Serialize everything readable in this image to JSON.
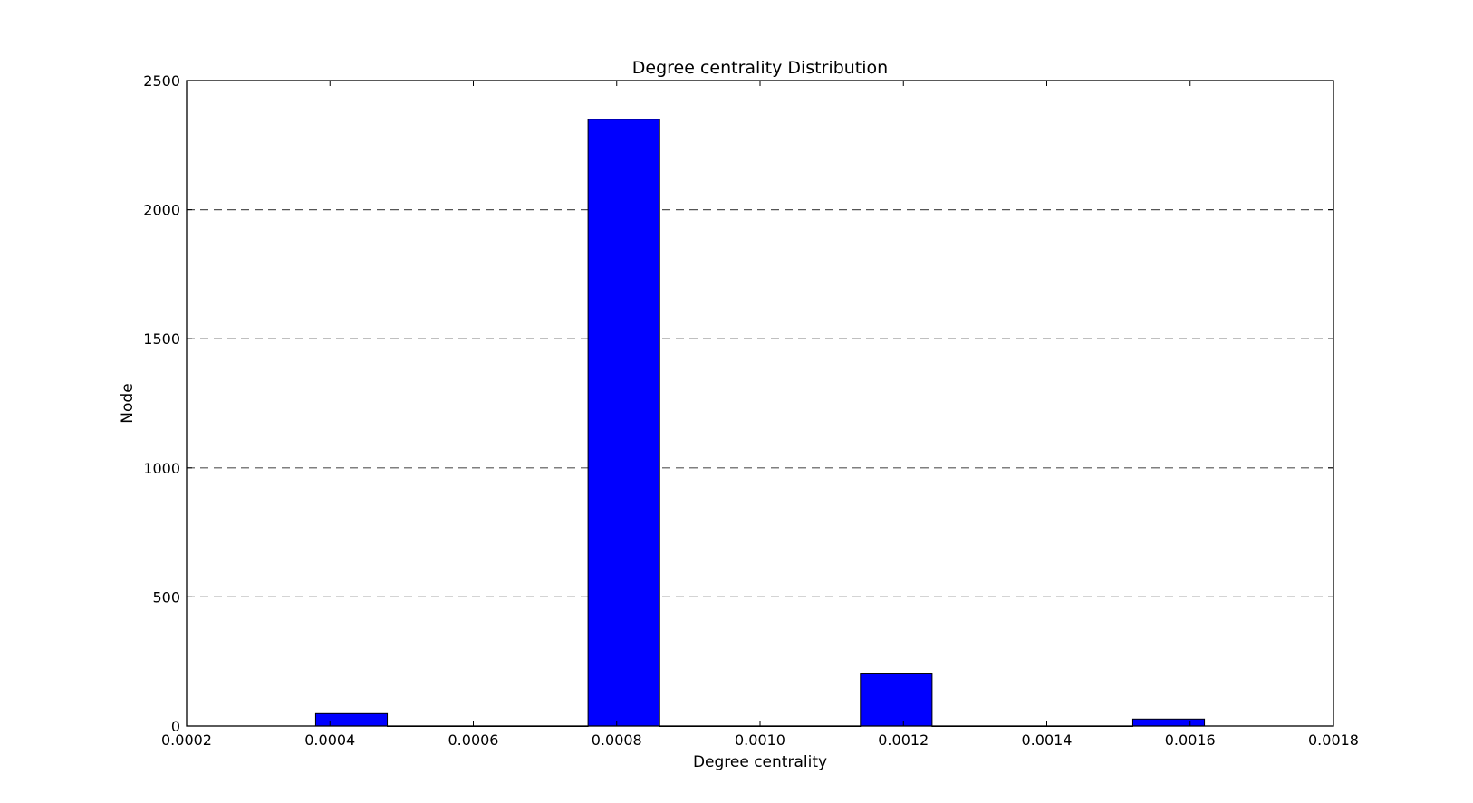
{
  "chart_data": {
    "type": "bar",
    "title": "Degree centrality Distribution",
    "xlabel": "Degree centrality",
    "ylabel": "Node",
    "xlim": [
      0.0002,
      0.0018
    ],
    "ylim": [
      0,
      2500
    ],
    "xticks": [
      "0.0002",
      "0.0004",
      "0.0006",
      "0.0008",
      "0.0010",
      "0.0012",
      "0.0014",
      "0.0016",
      "0.0018"
    ],
    "yticks": [
      "0",
      "500",
      "1000",
      "1500",
      "2000",
      "2500"
    ],
    "grid": "horizontal-dashed",
    "bar_color": "#0000ff",
    "bins": [
      {
        "x0": 0.00038,
        "x1": 0.00048,
        "value": 48
      },
      {
        "x0": 0.00048,
        "x1": 0.00057,
        "value": 0
      },
      {
        "x0": 0.00057,
        "x1": 0.00067,
        "value": 0
      },
      {
        "x0": 0.00067,
        "x1": 0.00076,
        "value": 0
      },
      {
        "x0": 0.00076,
        "x1": 0.00086,
        "value": 2350
      },
      {
        "x0": 0.00086,
        "x1": 0.00095,
        "value": 0
      },
      {
        "x0": 0.00095,
        "x1": 0.00105,
        "value": 0
      },
      {
        "x0": 0.00105,
        "x1": 0.00114,
        "value": 0
      },
      {
        "x0": 0.00114,
        "x1": 0.00124,
        "value": 205
      },
      {
        "x0": 0.00124,
        "x1": 0.00133,
        "value": 0
      },
      {
        "x0": 0.00133,
        "x1": 0.00143,
        "value": 0
      },
      {
        "x0": 0.00143,
        "x1": 0.00152,
        "value": 0
      },
      {
        "x0": 0.00152,
        "x1": 0.00162,
        "value": 27
      }
    ]
  }
}
